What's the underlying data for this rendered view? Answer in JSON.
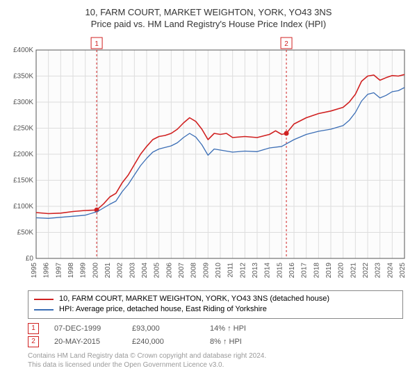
{
  "title_line1": "10, FARM COURT, MARKET WEIGHTON, YORK, YO43 3NS",
  "title_line2": "Price paid vs. HM Land Registry's House Price Index (HPI)",
  "title_fontsize": 13,
  "chart": {
    "type": "line",
    "background_color": "#fcfcfc",
    "grid_color": "#dddddd",
    "axis_color": "#555555",
    "axis_fontsize": 10,
    "y": {
      "min": 0,
      "max": 400000,
      "tick_step": 50000,
      "tick_labels": [
        "£0",
        "£50K",
        "£100K",
        "£150K",
        "£200K",
        "£250K",
        "£300K",
        "£350K",
        "£400K"
      ]
    },
    "x": {
      "min": 1995,
      "max": 2025,
      "tick_step": 1,
      "tick_labels": [
        "1995",
        "1996",
        "1997",
        "1998",
        "1999",
        "2000",
        "2001",
        "2002",
        "2003",
        "2004",
        "2005",
        "2006",
        "2007",
        "2008",
        "2009",
        "2010",
        "2011",
        "2012",
        "2013",
        "2014",
        "2015",
        "2016",
        "2017",
        "2018",
        "2019",
        "2020",
        "2021",
        "2022",
        "2023",
        "2024",
        "2025"
      ]
    },
    "series": [
      {
        "name": "property",
        "label": "10, FARM COURT, MARKET WEIGHTON, YORK, YO43 3NS (detached house)",
        "color": "#d02020",
        "line_width": 1.6,
        "points": [
          [
            1995,
            88000
          ],
          [
            1996,
            86000
          ],
          [
            1997,
            87000
          ],
          [
            1998,
            90000
          ],
          [
            1999,
            92000
          ],
          [
            1999.93,
            93000
          ],
          [
            2000.5,
            105000
          ],
          [
            2001,
            118000
          ],
          [
            2001.5,
            125000
          ],
          [
            2002,
            145000
          ],
          [
            2002.5,
            160000
          ],
          [
            2003,
            180000
          ],
          [
            2003.5,
            200000
          ],
          [
            2004,
            215000
          ],
          [
            2004.5,
            228000
          ],
          [
            2005,
            234000
          ],
          [
            2005.5,
            236000
          ],
          [
            2006,
            240000
          ],
          [
            2006.5,
            248000
          ],
          [
            2007,
            260000
          ],
          [
            2007.5,
            270000
          ],
          [
            2008,
            263000
          ],
          [
            2008.5,
            248000
          ],
          [
            2009,
            228000
          ],
          [
            2009.5,
            240000
          ],
          [
            2010,
            238000
          ],
          [
            2010.5,
            240000
          ],
          [
            2011,
            232000
          ],
          [
            2012,
            234000
          ],
          [
            2013,
            232000
          ],
          [
            2014,
            238000
          ],
          [
            2014.5,
            245000
          ],
          [
            2015,
            238000
          ],
          [
            2015.38,
            240000
          ],
          [
            2016,
            258000
          ],
          [
            2017,
            270000
          ],
          [
            2018,
            278000
          ],
          [
            2019,
            283000
          ],
          [
            2020,
            290000
          ],
          [
            2020.5,
            300000
          ],
          [
            2021,
            315000
          ],
          [
            2021.5,
            340000
          ],
          [
            2022,
            350000
          ],
          [
            2022.5,
            352000
          ],
          [
            2023,
            342000
          ],
          [
            2023.5,
            347000
          ],
          [
            2024,
            351000
          ],
          [
            2024.5,
            350000
          ],
          [
            2025,
            353000
          ]
        ]
      },
      {
        "name": "hpi",
        "label": "HPI: Average price, detached house, East Riding of Yorkshire",
        "color": "#3a6db5",
        "line_width": 1.3,
        "points": [
          [
            1995,
            78000
          ],
          [
            1996,
            77000
          ],
          [
            1997,
            79000
          ],
          [
            1998,
            81000
          ],
          [
            1999,
            83000
          ],
          [
            2000,
            90000
          ],
          [
            2001,
            104000
          ],
          [
            2001.5,
            110000
          ],
          [
            2002,
            128000
          ],
          [
            2002.5,
            142000
          ],
          [
            2003,
            160000
          ],
          [
            2003.5,
            178000
          ],
          [
            2004,
            192000
          ],
          [
            2004.5,
            204000
          ],
          [
            2005,
            210000
          ],
          [
            2006,
            216000
          ],
          [
            2006.5,
            222000
          ],
          [
            2007,
            232000
          ],
          [
            2007.5,
            240000
          ],
          [
            2008,
            233000
          ],
          [
            2008.5,
            218000
          ],
          [
            2009,
            198000
          ],
          [
            2009.5,
            210000
          ],
          [
            2010,
            208000
          ],
          [
            2011,
            204000
          ],
          [
            2012,
            206000
          ],
          [
            2013,
            205000
          ],
          [
            2014,
            212000
          ],
          [
            2015,
            215000
          ],
          [
            2016,
            228000
          ],
          [
            2017,
            238000
          ],
          [
            2018,
            244000
          ],
          [
            2019,
            248000
          ],
          [
            2020,
            255000
          ],
          [
            2020.5,
            265000
          ],
          [
            2021,
            280000
          ],
          [
            2021.5,
            302000
          ],
          [
            2022,
            315000
          ],
          [
            2022.5,
            318000
          ],
          [
            2023,
            308000
          ],
          [
            2023.5,
            313000
          ],
          [
            2024,
            320000
          ],
          [
            2024.5,
            322000
          ],
          [
            2025,
            328000
          ]
        ]
      }
    ],
    "markers": [
      {
        "id": "1",
        "x": 1999.93,
        "y": 93000,
        "date": "07-DEC-1999",
        "price": "£93,000",
        "delta": "14% ↑ HPI",
        "line_color": "#d02020",
        "line_dash": "3,3"
      },
      {
        "id": "2",
        "x": 2015.38,
        "y": 240000,
        "date": "20-MAY-2015",
        "price": "£240,000",
        "delta": "8% ↑ HPI",
        "line_color": "#d02020",
        "line_dash": "3,3"
      }
    ]
  },
  "legend_border_color": "#888888",
  "footnote_line1": "Contains HM Land Registry data © Crown copyright and database right 2024.",
  "footnote_line2": "This data is licensed under the Open Government Licence v3.0."
}
